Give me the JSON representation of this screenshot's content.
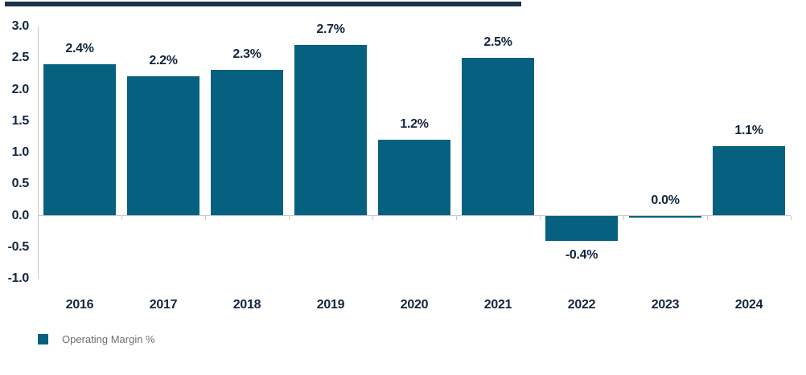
{
  "chart_data": {
    "type": "bar",
    "categories": [
      "2016",
      "2017",
      "2018",
      "2019",
      "2020",
      "2021",
      "2022",
      "2023",
      "2024"
    ],
    "values": [
      2.4,
      2.2,
      2.3,
      2.7,
      1.2,
      2.5,
      -0.4,
      0.0,
      1.1
    ],
    "bar_labels": [
      "2.4%",
      "2.2%",
      "2.3%",
      "2.7%",
      "1.2%",
      "2.5%",
      "-0.4%",
      "0.0%",
      "1.1%"
    ],
    "y_ticks": [
      "3.0",
      "2.5",
      "2.0",
      "1.5",
      "1.0",
      "0.5",
      "0.0",
      "-0.5",
      "-1.0"
    ],
    "ylim": [
      -1.0,
      3.0
    ],
    "xlabel": "",
    "ylabel": "",
    "grid": "zero-baseline-only",
    "legend": {
      "label": "Operating Margin %",
      "position": "bottom-left"
    },
    "colors": {
      "bar": "#066180",
      "data_label": "#12263e",
      "axis_label": "#12263e",
      "axis_line": "#c7c8ca",
      "legend_text": "#6d6e71",
      "top_rule": "#1b3349"
    }
  }
}
